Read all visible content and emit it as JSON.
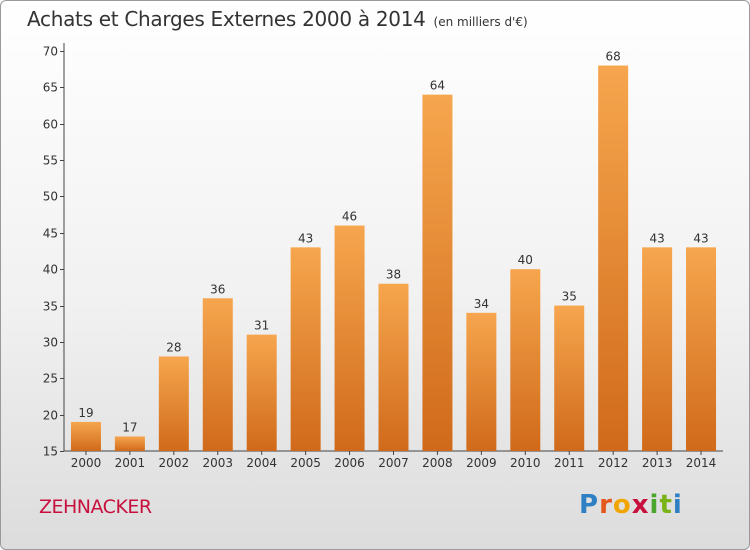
{
  "title": "Achats et Charges Externes 2000 à 2014",
  "subtitle": "(en milliers d'€)",
  "commune": "ZEHNACKER",
  "logo": {
    "letters": [
      "P",
      "r",
      "o",
      "x",
      "i",
      "t",
      "i"
    ],
    "colors": [
      "#2f7fc4",
      "#e4571d",
      "#f0a500",
      "#c8103e",
      "#4aa52e",
      "#7ab317",
      "#2f7fc4"
    ]
  },
  "colors": {
    "bar_top": "#f6a64e",
    "bar_bottom": "#d06a1a",
    "text": "#333333"
  },
  "chart_data": {
    "type": "bar",
    "categories": [
      "2000",
      "2001",
      "2002",
      "2003",
      "2004",
      "2005",
      "2006",
      "2007",
      "2008",
      "2009",
      "2010",
      "2011",
      "2012",
      "2013",
      "2014"
    ],
    "values": [
      19,
      17,
      28,
      36,
      31,
      43,
      46,
      38,
      64,
      34,
      40,
      35,
      68,
      43,
      43
    ],
    "ylim": [
      15,
      70
    ],
    "yticks": [
      15,
      20,
      25,
      30,
      35,
      40,
      45,
      50,
      55,
      60,
      65,
      70
    ],
    "grid": false,
    "xlabel": "",
    "ylabel": ""
  }
}
